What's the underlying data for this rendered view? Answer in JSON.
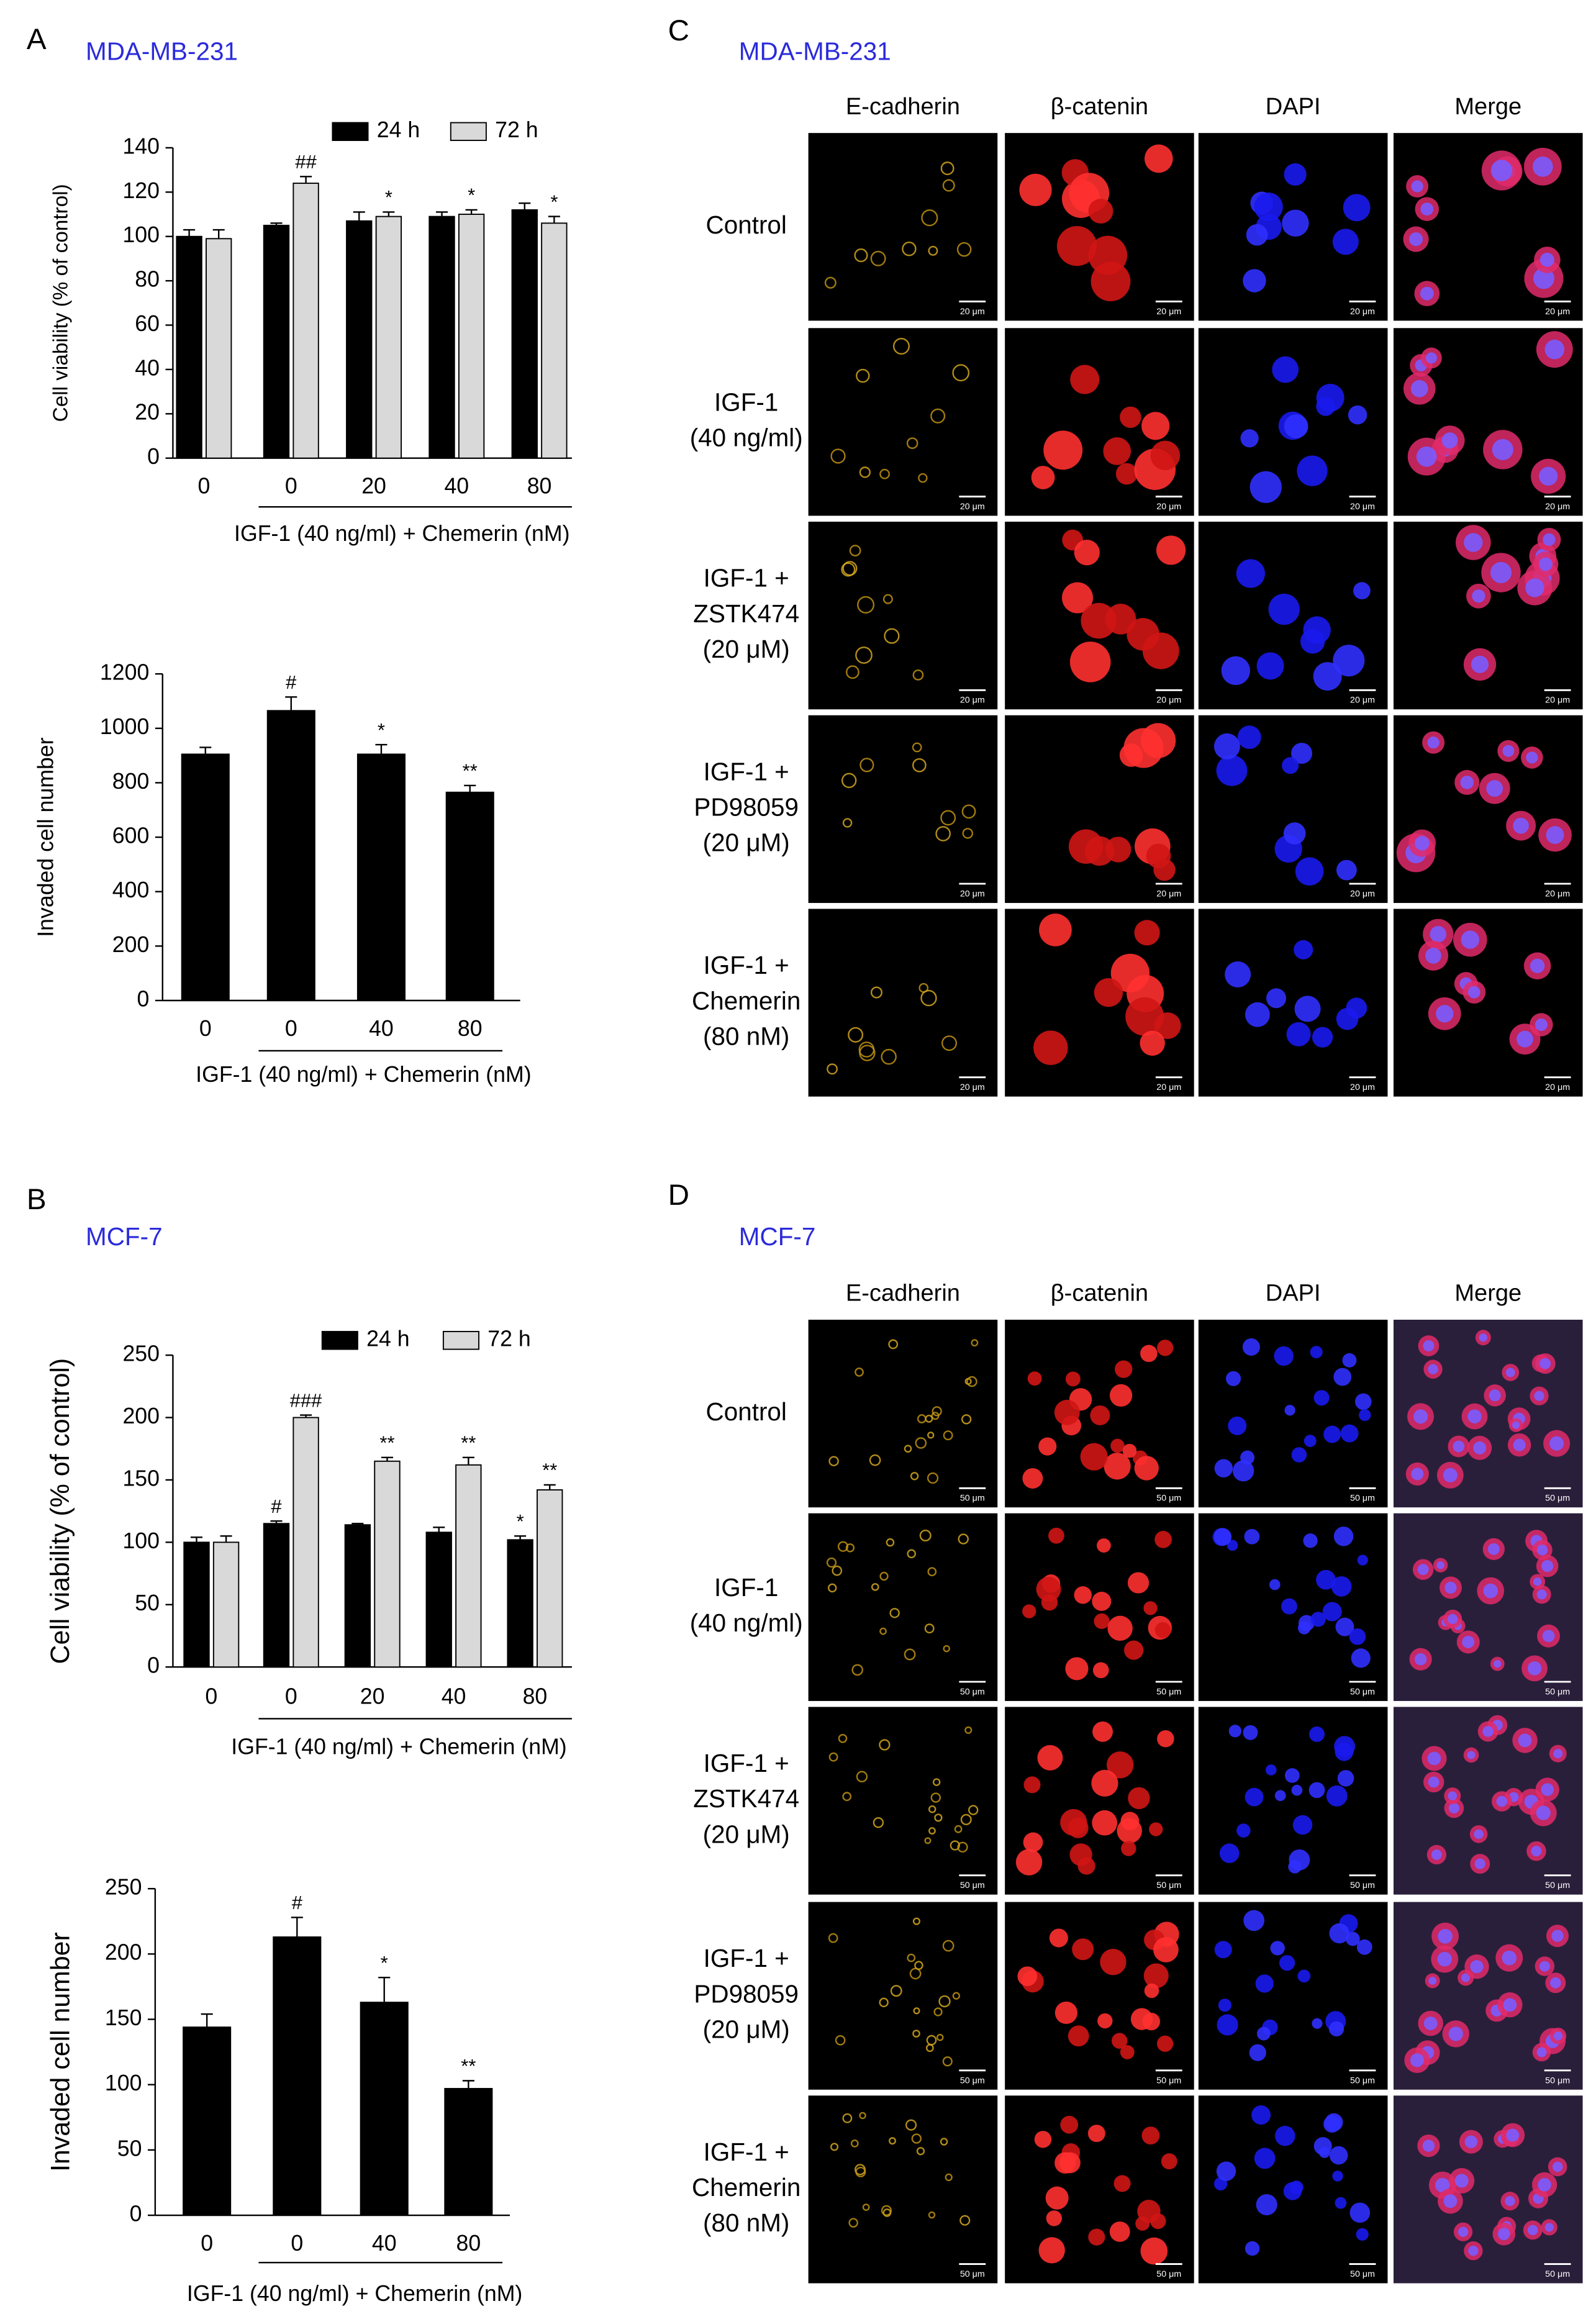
{
  "panels": [
    {
      "label": "A",
      "subtitle": "MDA-MB-231"
    },
    {
      "label": "B",
      "subtitle": "MCF-7"
    }
  ],
  "chart_data": [
    {
      "type": "bar",
      "ylabel": "Cell viability (% of control)",
      "xlabel": "IGF-1  (40 ng/ml) + Chemerin (nM)",
      "categories": [
        "0",
        "0",
        "20",
        "40",
        "80"
      ],
      "series": [
        {
          "name": "24 h",
          "color": "#000000",
          "values": [
            100,
            105,
            107,
            109,
            112
          ],
          "errors": [
            3,
            1,
            4,
            2,
            3
          ],
          "annotations": [
            null,
            null,
            null,
            null,
            null
          ]
        },
        {
          "name": "72 h",
          "color": "#d9d9d9",
          "values": [
            99,
            124,
            109,
            110,
            106
          ],
          "errors": [
            4,
            3,
            2,
            2,
            3
          ],
          "annotations": [
            null,
            "##",
            "*",
            "*",
            "*"
          ]
        }
      ],
      "ylim": [
        0,
        140
      ],
      "yticks": [
        0,
        20,
        40,
        60,
        80,
        100,
        120,
        140
      ],
      "legend": "top"
    },
    {
      "type": "bar",
      "ylabel": "Invaded cell number",
      "xlabel": "IGF-1 (40 ng/ml) + Chemerin (nM)",
      "categories": [
        "0",
        "0",
        "40",
        "80"
      ],
      "color": "#000000",
      "values": [
        905,
        1065,
        905,
        765
      ],
      "errors": [
        25,
        50,
        35,
        25
      ],
      "annotations": [
        null,
        "#",
        "*",
        "**"
      ],
      "ylim": [
        0,
        1200
      ],
      "yticks": [
        0,
        200,
        400,
        600,
        800,
        1000,
        1200
      ]
    },
    {
      "type": "bar",
      "ylabel": "Cell viability  (% of control)",
      "xlabel": "IGF-1  (40 ng/ml) + Chemerin (nM)",
      "categories": [
        "0",
        "0",
        "20",
        "40",
        "80"
      ],
      "series": [
        {
          "name": "24 h",
          "color": "#000000",
          "values": [
            100,
            115,
            114,
            108,
            102
          ],
          "errors": [
            4,
            2,
            1,
            4,
            3
          ],
          "annotations": [
            null,
            "#",
            null,
            null,
            "*"
          ]
        },
        {
          "name": "72 h",
          "color": "#d9d9d9",
          "values": [
            100,
            200,
            165,
            162,
            142
          ],
          "errors": [
            5,
            2,
            3,
            6,
            4
          ],
          "annotations": [
            null,
            "###",
            "**",
            "**",
            "**"
          ]
        }
      ],
      "ylim": [
        0,
        250
      ],
      "yticks": [
        0,
        50,
        100,
        150,
        200,
        250
      ],
      "legend": "top"
    },
    {
      "type": "bar",
      "ylabel": "Invaded cell number",
      "xlabel": "IGF-1 (40 ng/ml) + Chemerin (nM)",
      "categories": [
        "0",
        "0",
        "40",
        "80"
      ],
      "color": "#000000",
      "values": [
        144,
        213,
        163,
        97
      ],
      "errors": [
        10,
        15,
        19,
        6
      ],
      "annotations": [
        null,
        "#",
        "*",
        "**"
      ],
      "ylim": [
        0,
        250
      ],
      "yticks": [
        0,
        50,
        100,
        150,
        200,
        250
      ]
    }
  ],
  "microscopy": [
    {
      "label": "C",
      "subtitle": "MDA-MB-231",
      "columns": [
        "E-cadherin",
        "β-catenin",
        "DAPI",
        "Merge"
      ],
      "rows": [
        [
          "Control"
        ],
        [
          "IGF-1",
          "(40 ng/ml)"
        ],
        [
          "IGF-1 +",
          "ZSTK474",
          "(20 μM)"
        ],
        [
          "IGF-1 +",
          "PD98059",
          "(20 μM)"
        ],
        [
          "IGF-1 +",
          "Chemerin",
          "(80 nM)"
        ]
      ],
      "scale_bar": "20 μm"
    },
    {
      "label": "D",
      "subtitle": "MCF-7",
      "columns": [
        "E-cadherin",
        "β-catenin",
        "DAPI",
        "Merge"
      ],
      "rows": [
        [
          "Control"
        ],
        [
          "IGF-1",
          "(40 ng/ml)"
        ],
        [
          "IGF-1 +",
          "ZSTK474",
          "(20 μM)"
        ],
        [
          "IGF-1 +",
          "PD98059",
          "(20 μM)"
        ],
        [
          "IGF-1 +",
          "Chemerin",
          "(80 nM)"
        ]
      ],
      "scale_bar": "50 μm"
    }
  ]
}
